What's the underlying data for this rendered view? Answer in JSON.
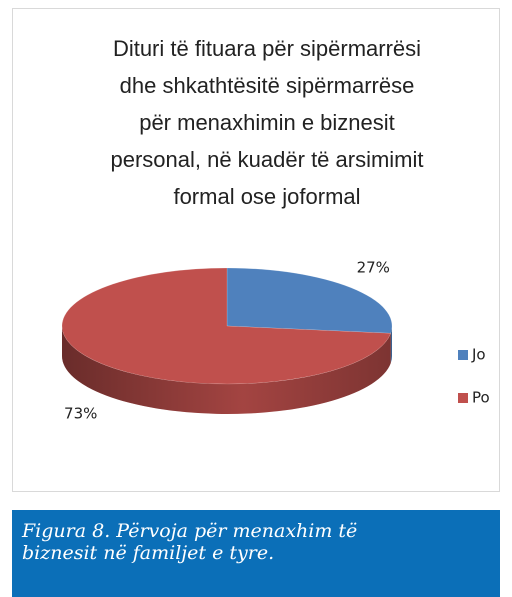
{
  "chart_data": {
    "type": "pie",
    "title": "Dituri të fituara për sipërmarrësi dhe shkathtësitë sipërmarrëse për menaxhimin e biznesit personal, në kuadër të arsimimit formal ose joformal",
    "categories": [
      "Jo",
      "Po"
    ],
    "values": [
      27,
      73
    ],
    "value_labels": [
      "27%",
      "73%"
    ],
    "colors": [
      "#4f81bd",
      "#c0504d"
    ],
    "legend": "right"
  },
  "caption": "Figura 8. Përvoja për menaxhim të biznesit në familjet e tyre."
}
